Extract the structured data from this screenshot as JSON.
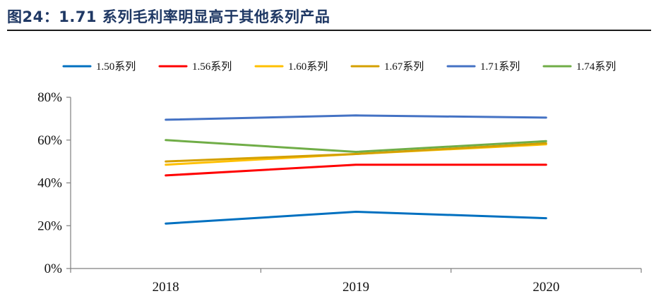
{
  "figure": {
    "title": "图24：1.71 系列毛利率明显高于其他系列产品"
  },
  "chart_data": {
    "type": "line",
    "title": "",
    "xlabel": "",
    "ylabel": "",
    "categories": [
      "2018",
      "2019",
      "2020"
    ],
    "ylim": [
      0,
      80
    ],
    "yticks": [
      0,
      20,
      40,
      60,
      80
    ],
    "ytick_labels": [
      "0%",
      "20%",
      "40%",
      "60%",
      "80%"
    ],
    "y_unit": "%",
    "grid": false,
    "legend_position": "top",
    "series": [
      {
        "name": "1.50系列",
        "color": "#0070c0",
        "values": [
          21,
          26.5,
          23.5
        ]
      },
      {
        "name": "1.56系列",
        "color": "#ff0000",
        "values": [
          43.5,
          48.5,
          48.5
        ]
      },
      {
        "name": "1.60系列",
        "color": "#ffc000",
        "values": [
          48.5,
          53.5,
          58
        ]
      },
      {
        "name": "1.67系列",
        "color": "#d4a000",
        "values": [
          50,
          53.5,
          58.5
        ]
      },
      {
        "name": "1.71系列",
        "color": "#4472c4",
        "values": [
          69.5,
          71.5,
          70.5
        ]
      },
      {
        "name": "1.74系列",
        "color": "#70ad47",
        "values": [
          60,
          54.5,
          59.5
        ]
      }
    ]
  }
}
